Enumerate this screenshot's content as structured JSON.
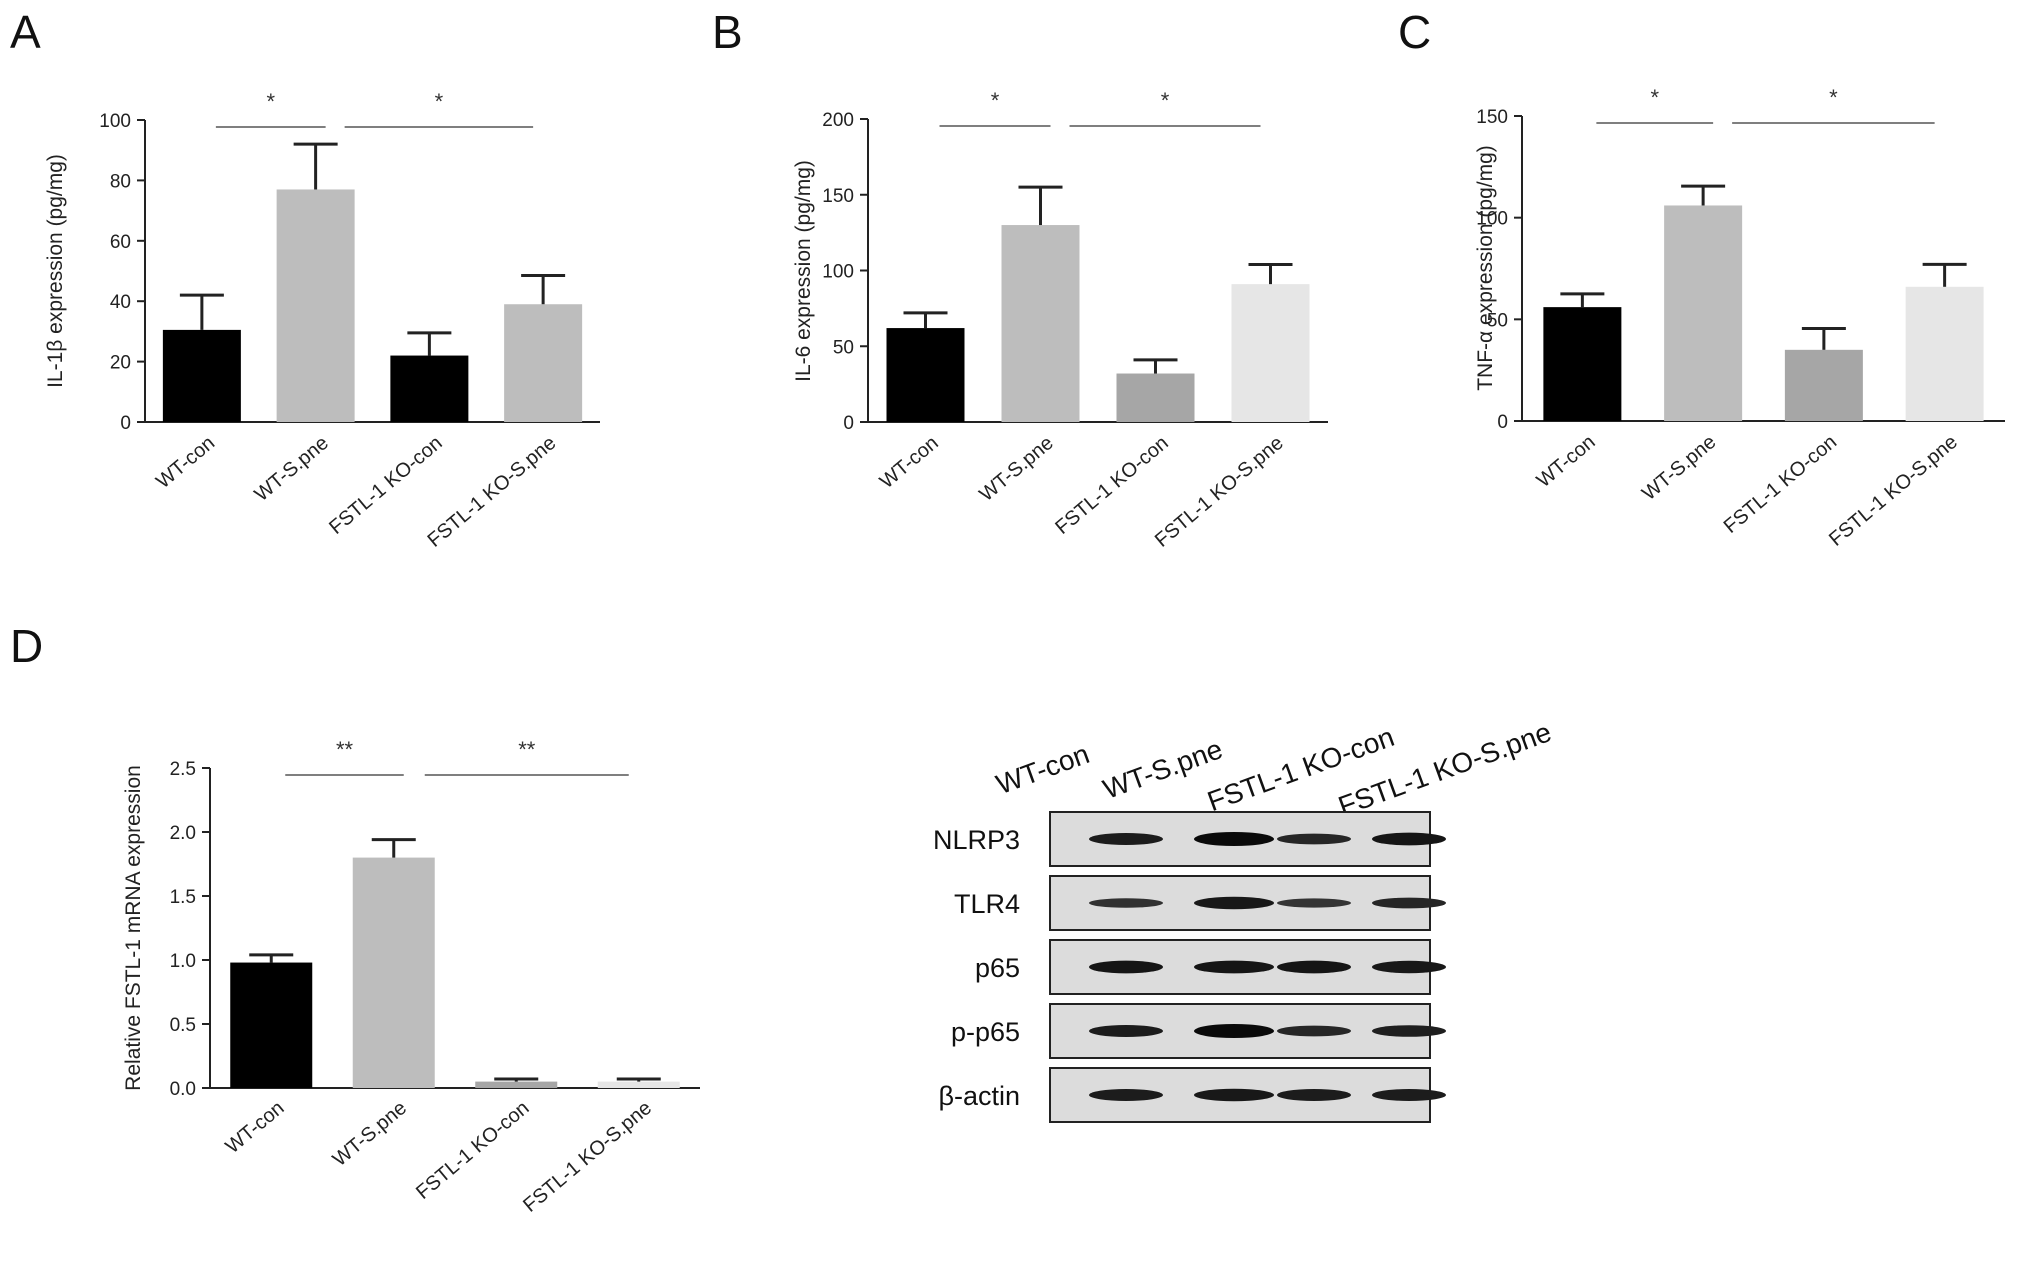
{
  "panels": [
    "A",
    "B",
    "C",
    "D"
  ],
  "chart_data": [
    {
      "panel": "A",
      "type": "bar",
      "categories": [
        "WT-con",
        "WT-S.pne",
        "FSTL-1 KO-con",
        "FSTL-1 KO-S.pne"
      ],
      "values": [
        30.5,
        77,
        22,
        39
      ],
      "errors": [
        11.5,
        15,
        7.5,
        9.5
      ],
      "colors": [
        "#000000",
        "#bdbdbd",
        "#000000",
        "#bdbdbd"
      ],
      "ylabel": "IL-1β expression (pg/mg)",
      "ylim": [
        0,
        100
      ],
      "yticks": [
        "0",
        "20",
        "40",
        "60",
        "80",
        "100"
      ],
      "significance": [
        {
          "from": 0,
          "to": 1,
          "label": "*"
        },
        {
          "from": 1,
          "to": 3,
          "label": "*"
        }
      ]
    },
    {
      "panel": "B",
      "type": "bar",
      "categories": [
        "WT-con",
        "WT-S.pne",
        "FSTL-1 KO-con",
        "FSTL-1 KO-S.pne"
      ],
      "values": [
        62,
        130,
        32,
        91
      ],
      "errors": [
        10,
        25,
        9,
        13
      ],
      "colors": [
        "#000000",
        "#bdbdbd",
        "#a6a6a6",
        "#e6e6e6"
      ],
      "ylabel": "IL-6 expression (pg/mg)",
      "ylim": [
        0,
        200
      ],
      "yticks": [
        "0",
        "50",
        "100",
        "150",
        "200"
      ],
      "significance": [
        {
          "from": 0,
          "to": 1,
          "label": "*"
        },
        {
          "from": 1,
          "to": 3,
          "label": "*"
        }
      ]
    },
    {
      "panel": "C",
      "type": "bar",
      "categories": [
        "WT-con",
        "WT-S.pne",
        "FSTL-1 KO-con",
        "FSTL-1 KO-S.pne"
      ],
      "values": [
        56,
        106,
        35,
        66
      ],
      "errors": [
        6.5,
        9.5,
        10.5,
        11
      ],
      "colors": [
        "#000000",
        "#bdbdbd",
        "#a6a6a6",
        "#e6e6e6"
      ],
      "ylabel": "TNF-α expression (pg/mg)",
      "ylim": [
        0,
        150
      ],
      "yticks": [
        "0",
        "50",
        "100",
        "150"
      ],
      "significance": [
        {
          "from": 0,
          "to": 1,
          "label": "*"
        },
        {
          "from": 1,
          "to": 3,
          "label": "*"
        }
      ]
    },
    {
      "panel": "D",
      "type": "bar",
      "categories": [
        "WT-con",
        "WT-S.pne",
        "FSTL-1 KO-con",
        "FSTL-1 KO-S.pne"
      ],
      "values": [
        0.98,
        1.8,
        0.05,
        0.05
      ],
      "errors": [
        0.06,
        0.14,
        0.02,
        0.02
      ],
      "colors": [
        "#000000",
        "#bdbdbd",
        "#a6a6a6",
        "#e6e6e6"
      ],
      "ylabel": "Relative FSTL-1 mRNA expression",
      "ylim": [
        0,
        2.5
      ],
      "yticks": [
        "0.0",
        "0.5",
        "1.0",
        "1.5",
        "2.0",
        "2.5"
      ],
      "significance": [
        {
          "from": 0,
          "to": 1,
          "label": "**"
        },
        {
          "from": 1,
          "to": 3,
          "label": "**"
        }
      ]
    }
  ],
  "blot": {
    "lanes": [
      "WT-con",
      "WT-S.pne",
      "FSTL-1 KO-con",
      "FSTL-1 KO-S.pne"
    ],
    "rows": [
      {
        "label": "NLRP3",
        "intensity": [
          0.75,
          1.0,
          0.6,
          0.85
        ]
      },
      {
        "label": "TLR4",
        "intensity": [
          0.45,
          0.8,
          0.4,
          0.6
        ]
      },
      {
        "label": "p65",
        "intensity": [
          0.85,
          0.85,
          0.85,
          0.8
        ]
      },
      {
        "label": "p-p65",
        "intensity": [
          0.75,
          1.0,
          0.6,
          0.7
        ]
      },
      {
        "label": "β-actin",
        "intensity": [
          0.75,
          0.8,
          0.75,
          0.75
        ]
      }
    ]
  }
}
